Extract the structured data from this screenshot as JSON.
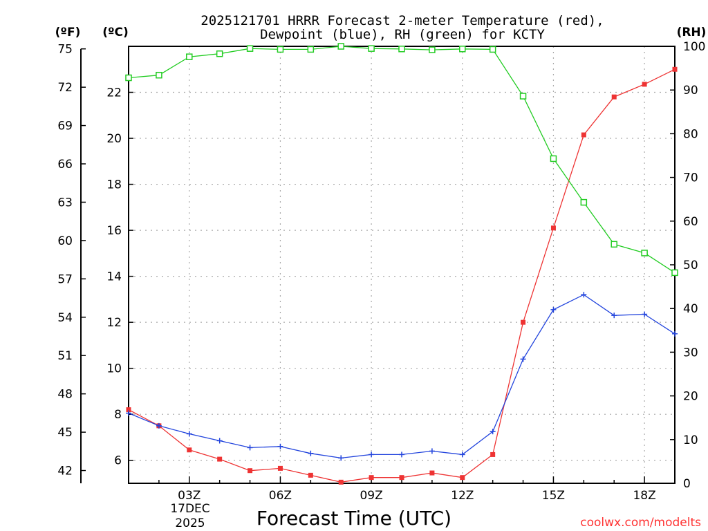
{
  "chart_data": {
    "type": "line",
    "title_line1": "2025121701 HRRR Forecast 2-meter Temperature (red),",
    "title_line2": "Dewpoint (blue), RH (green) for KCTY",
    "xlabel": "Forecast Time (UTC)",
    "date_label_day": "17DEC",
    "date_label_year": "2025",
    "credit": "coolwx.com/modelts",
    "left_unit_f": "(ºF)",
    "left_unit_c": "(ºC)",
    "right_unit": "(RH)",
    "x_hours": [
      1,
      2,
      3,
      4,
      5,
      6,
      7,
      8,
      9,
      10,
      11,
      12,
      13,
      14,
      15,
      16,
      17,
      18,
      19
    ],
    "xlim": [
      1,
      19
    ],
    "x_ticks": [
      3,
      6,
      9,
      12,
      15,
      18
    ],
    "x_tick_labels": [
      "03Z",
      "06Z",
      "09Z",
      "12Z",
      "15Z",
      "18Z"
    ],
    "celsius_range": [
      5.0,
      24.0
    ],
    "celsius_ticks": [
      6,
      8,
      10,
      12,
      14,
      16,
      18,
      20,
      22
    ],
    "fahrenheit_ticks": [
      42,
      45,
      48,
      51,
      54,
      57,
      60,
      63,
      66,
      69,
      72,
      75
    ],
    "rh_range": [
      0,
      100
    ],
    "rh_ticks": [
      0,
      10,
      20,
      30,
      40,
      50,
      60,
      70,
      80,
      90,
      100
    ],
    "series": [
      {
        "name": "Temperature",
        "axis": "celsius",
        "color": "#ee3333",
        "marker": "filled-square",
        "values": [
          8.2,
          7.5,
          6.45,
          6.05,
          5.55,
          5.65,
          5.35,
          5.05,
          5.25,
          5.25,
          5.45,
          5.25,
          6.25,
          12.0,
          16.1,
          20.15,
          21.8,
          22.35,
          23.0
        ]
      },
      {
        "name": "Dewpoint",
        "axis": "celsius",
        "color": "#2244dd",
        "marker": "plus",
        "values": [
          8.05,
          7.5,
          7.15,
          6.85,
          6.55,
          6.6,
          6.3,
          6.1,
          6.25,
          6.25,
          6.4,
          6.25,
          7.25,
          10.4,
          12.55,
          13.2,
          12.3,
          12.35,
          11.5
        ]
      },
      {
        "name": "Relative Humidity",
        "axis": "rh",
        "color": "#22cc22",
        "marker": "open-square",
        "values": [
          92.8,
          93.4,
          97.6,
          98.3,
          99.5,
          99.3,
          99.3,
          100,
          99.5,
          99.4,
          99.2,
          99.4,
          99.3,
          88.6,
          74.3,
          64.3,
          54.7,
          52.7,
          48.2
        ]
      }
    ]
  }
}
